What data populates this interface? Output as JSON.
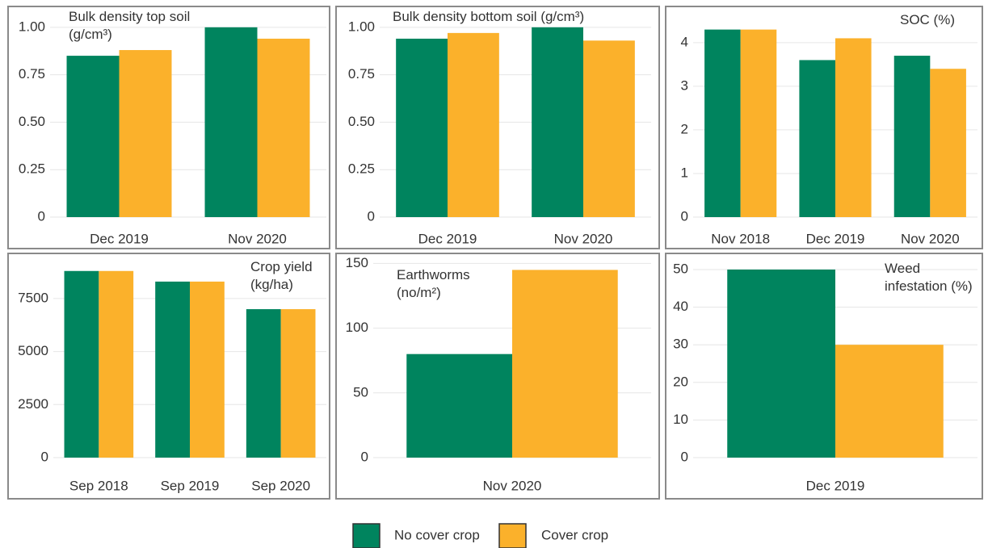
{
  "chart_data": [
    {
      "type": "bar",
      "title": "Bulk density top soil (g/cm³)",
      "categories": [
        "Dec 2019",
        "Nov 2020"
      ],
      "series": [
        {
          "name": "No cover crop",
          "color": "#00845e",
          "values": [
            0.85,
            1.0
          ]
        },
        {
          "name": "Cover crop",
          "color": "#fbb12b",
          "values": [
            0.88,
            0.94
          ]
        }
      ],
      "ylim": [
        0,
        1.08
      ],
      "yticks": [
        0,
        0.25,
        {
          "value": 0.5,
          "label": "0.50"
        },
        0.75,
        {
          "value": 1,
          "label": "1.00"
        }
      ],
      "grid": true
    },
    {
      "type": "bar",
      "title": "Bulk density bottom soil (g/cm³)",
      "categories": [
        "Dec 2019",
        "Nov 2020"
      ],
      "series": [
        {
          "name": "No cover crop",
          "color": "#00845e",
          "values": [
            0.94,
            1.0
          ]
        },
        {
          "name": "Cover crop",
          "color": "#fbb12b",
          "values": [
            0.97,
            0.93
          ]
        }
      ],
      "ylim": [
        0,
        1.08
      ],
      "yticks": [
        0,
        0.25,
        {
          "value": 0.5,
          "label": "0.50"
        },
        0.75,
        {
          "value": 1,
          "label": "1.00"
        }
      ],
      "grid": true
    },
    {
      "type": "bar",
      "title": "SOC (%)",
      "categories": [
        "Nov 2018",
        "Dec 2019",
        "Nov 2020"
      ],
      "series": [
        {
          "name": "No cover crop",
          "color": "#00845e",
          "values": [
            4.3,
            3.6,
            3.7
          ]
        },
        {
          "name": "Cover crop",
          "color": "#fbb12b",
          "values": [
            4.3,
            4.1,
            3.4
          ]
        }
      ],
      "ylim": [
        0,
        4.7
      ],
      "yticks": [
        0,
        1,
        2,
        3,
        4
      ],
      "grid": true
    },
    {
      "type": "bar",
      "title": "Crop yield (kg/ha)",
      "categories": [
        "Sep 2018",
        "Sep 2019",
        "Sep 2020"
      ],
      "series": [
        {
          "name": "No cover crop",
          "color": "#00845e",
          "values": [
            8800,
            8300,
            7000
          ]
        },
        {
          "name": "Cover crop",
          "color": "#fbb12b",
          "values": [
            8800,
            8300,
            7000
          ]
        }
      ],
      "ylim": [
        0,
        9400
      ],
      "yticks": [
        0,
        2500,
        5000,
        7500
      ],
      "grid": true
    },
    {
      "type": "bar",
      "title": "Earthworms (no/m²)",
      "categories": [
        "Nov 2020"
      ],
      "series": [
        {
          "name": "No cover crop",
          "color": "#00845e",
          "values": [
            80
          ]
        },
        {
          "name": "Cover crop",
          "color": "#fbb12b",
          "values": [
            145
          ]
        }
      ],
      "ylim": [
        0,
        154
      ],
      "yticks": [
        0,
        50,
        100,
        150
      ],
      "grid": true
    },
    {
      "type": "bar",
      "title": "Weed infestation (%)",
      "categories": [
        "Dec 2019"
      ],
      "series": [
        {
          "name": "No cover crop",
          "color": "#00845e",
          "values": [
            50
          ]
        },
        {
          "name": "Cover crop",
          "color": "#fbb12b",
          "values": [
            30
          ]
        }
      ],
      "ylim": [
        0,
        53
      ],
      "yticks": [
        0,
        10,
        20,
        30,
        40,
        50
      ],
      "grid": true
    }
  ]
}
